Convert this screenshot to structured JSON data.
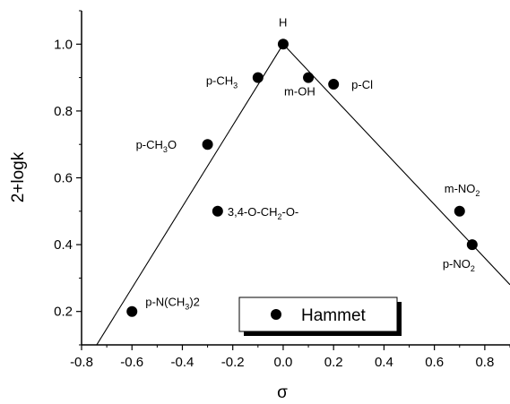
{
  "chart_data": {
    "type": "scatter",
    "xlabel": "σ",
    "ylabel": "2+logk",
    "xlim": [
      -0.8,
      0.9
    ],
    "ylim": [
      0.1,
      1.1
    ],
    "xticks": [
      "-0.8",
      "-0.6",
      "-0.4",
      "-0.2",
      "0.0",
      "0.2",
      "0.4",
      "0.6",
      "0.8"
    ],
    "yticks": [
      "0.2",
      "0.4",
      "0.6",
      "0.8",
      "1.0"
    ],
    "legend": {
      "placement": "bottom-center",
      "entries": [
        "Hammet"
      ]
    },
    "grid": false,
    "series": [
      {
        "name": "Hammet",
        "points": [
          {
            "label": "H",
            "x": 0.0,
            "y": 1.0
          },
          {
            "label": "p-CH3",
            "x": -0.1,
            "y": 0.9
          },
          {
            "label": "m-OH",
            "x": 0.1,
            "y": 0.9
          },
          {
            "label": "p-Cl",
            "x": 0.2,
            "y": 0.88
          },
          {
            "label": "p-CH3O",
            "x": -0.3,
            "y": 0.7
          },
          {
            "label": "3,4-O-CH2-O-",
            "x": -0.26,
            "y": 0.5
          },
          {
            "label": "m-NO2",
            "x": 0.7,
            "y": 0.5
          },
          {
            "label": "p-NO2",
            "x": 0.75,
            "y": 0.4
          },
          {
            "label": "p-N(CH3)2",
            "x": -0.6,
            "y": 0.2
          }
        ]
      }
    ],
    "fit_lines": [
      {
        "x": [
          -0.74,
          0.0
        ],
        "y": [
          0.1,
          1.0
        ]
      },
      {
        "x": [
          0.0,
          0.9
        ],
        "y": [
          1.0,
          0.28
        ]
      }
    ]
  }
}
